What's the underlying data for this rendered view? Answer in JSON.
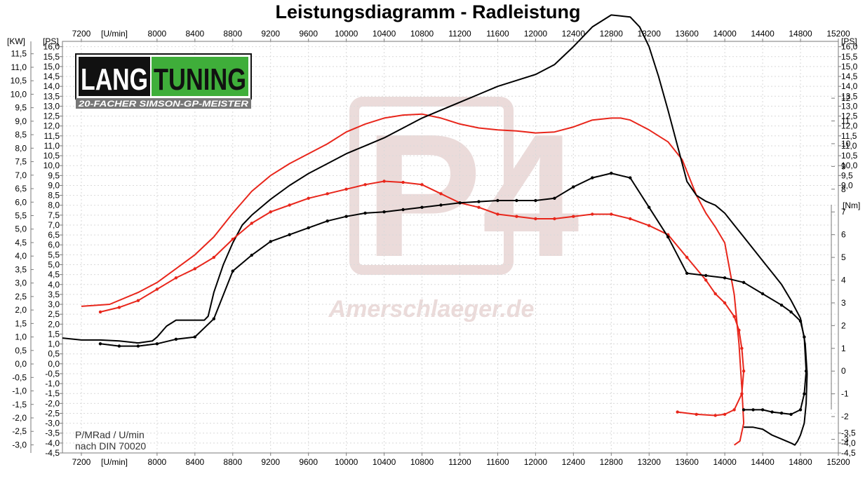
{
  "chart_data": {
    "type": "line",
    "title": "Leistungsdiagramm - Radleistung",
    "xlabel": "[U/min]",
    "ylabel_left_kw": "[KW]",
    "ylabel_left_ps": "[PS]",
    "ylabel_right_ps": "[PS]",
    "ylabel_right_nm": "[Nm]",
    "xlim": [
      7000,
      15200
    ],
    "x_ticks": [
      "7200",
      "8000",
      "8400",
      "8800",
      "9200",
      "9600",
      "10000",
      "10400",
      "10800",
      "11200",
      "11600",
      "12000",
      "12400",
      "12800",
      "13200",
      "13600",
      "14000",
      "14400",
      "14800",
      "15200"
    ],
    "kw_ylim": [
      -3.3,
      11.96
    ],
    "kw_ticks": [
      "11,5",
      "11,0",
      "10,5",
      "10,0",
      "9,5",
      "9,0",
      "8,5",
      "8,0",
      "7,5",
      "7,0",
      "6,5",
      "6,0",
      "5,5",
      "5,0",
      "4,5",
      "4,0",
      "3,5",
      "3,0",
      "2,5",
      "2,0",
      "1,5",
      "1,0",
      "0,5",
      "0,0",
      "-0,5",
      "-1,0",
      "-1,5",
      "-2,0",
      "-2,5",
      "-3,0"
    ],
    "ps_ylim": [
      -4.5,
      16.27
    ],
    "ps_ticks": [
      "16,0",
      "15,5",
      "15,0",
      "14,5",
      "14,0",
      "13,5",
      "13,0",
      "12,5",
      "12,0",
      "11,5",
      "11,0",
      "10,5",
      "10,0",
      "9,5",
      "9,0",
      "8,5",
      "8,0",
      "7,5",
      "7,0",
      "6,5",
      "6,0",
      "5,5",
      "5,0",
      "4,5",
      "4,0",
      "3,5",
      "3,0",
      "2,5",
      "2,0",
      "1,5",
      "1,0",
      "0,5",
      "0,0",
      "-0,5",
      "-1,0",
      "-1,5",
      "-2,0",
      "-2,5",
      "-3,0",
      "-3,5",
      "-4,0",
      "-4,5"
    ],
    "ps_right_ticks": [
      "16,0",
      "15,5",
      "15,0",
      "14,5",
      "14,0",
      "13,5",
      "13,0",
      "12,5",
      "12,0",
      "11,5",
      "11,0",
      "10,5",
      "10,0",
      "9,5",
      "9,0"
    ],
    "nm_ylim": [
      -3.6,
      14.5
    ],
    "nm_ticks": [
      "12",
      "11",
      "10",
      "9",
      "8",
      "7",
      "6",
      "5",
      "4",
      "3",
      "2",
      "1",
      "0",
      "-1",
      "-2",
      "-3"
    ],
    "ps_right_low_ticks": [
      "-3,5",
      "-4,0",
      "-4,5"
    ],
    "series": [
      {
        "axis": "PS",
        "color": "#e8261b",
        "style": "line",
        "x": [
          7200,
          7500,
          7800,
          8000,
          8200,
          8400,
          8600,
          8800,
          9000,
          9200,
          9400,
          9600,
          9800,
          10000,
          10200,
          10400,
          10600,
          10800,
          11000,
          11200,
          11400,
          11600,
          11800,
          12000,
          12200,
          12400,
          12600,
          12800,
          12900,
          13000,
          13200,
          13400,
          13550,
          13700,
          13800,
          13900,
          14000,
          14100,
          14150,
          14180,
          14200,
          14160,
          14100
        ],
        "y": [
          2.9,
          3.0,
          3.6,
          4.1,
          4.8,
          5.5,
          6.4,
          7.6,
          8.7,
          9.5,
          10.1,
          10.6,
          11.1,
          11.7,
          12.1,
          12.4,
          12.55,
          12.6,
          12.4,
          12.1,
          11.9,
          11.8,
          11.75,
          11.65,
          11.7,
          11.95,
          12.3,
          12.4,
          12.4,
          12.3,
          11.8,
          11.2,
          10.3,
          8.5,
          7.6,
          6.9,
          6.1,
          3.5,
          1.0,
          -1.2,
          -3.0,
          -3.9,
          -4.1
        ]
      },
      {
        "axis": "PS",
        "color": "#000000",
        "style": "line",
        "x": [
          7000,
          7200,
          7400,
          7600,
          7800,
          7950,
          8000,
          8100,
          8200,
          8300,
          8400,
          8500,
          8540,
          8600,
          8700,
          8800,
          8900,
          9000,
          9200,
          9400,
          9600,
          9800,
          10000,
          10200,
          10400,
          10600,
          10800,
          11000,
          11200,
          11400,
          11600,
          11800,
          12000,
          12200,
          12400,
          12600,
          12800,
          12900,
          13000,
          13100,
          13200,
          13300,
          13400,
          13500,
          13600,
          13700,
          13800,
          13900,
          14000,
          14100,
          14200,
          14300,
          14400,
          14500,
          14600,
          14700,
          14800,
          14850,
          14870,
          14860,
          14840,
          14800,
          14770,
          14740,
          14700,
          14600,
          14500,
          14400,
          14300,
          14200
        ],
        "y": [
          1.3,
          1.2,
          1.2,
          1.15,
          1.05,
          1.15,
          1.35,
          1.9,
          2.2,
          2.2,
          2.2,
          2.2,
          2.4,
          3.6,
          5.0,
          6.1,
          7.0,
          7.5,
          8.3,
          9.0,
          9.6,
          10.1,
          10.6,
          11.0,
          11.4,
          11.9,
          12.4,
          12.8,
          13.2,
          13.6,
          14.0,
          14.3,
          14.6,
          15.1,
          16.0,
          17.0,
          17.6,
          17.55,
          17.5,
          17.0,
          16.0,
          14.5,
          12.8,
          11.0,
          9.2,
          8.5,
          8.2,
          8.0,
          7.6,
          7.0,
          6.4,
          5.8,
          5.2,
          4.6,
          4.0,
          3.2,
          2.3,
          1.0,
          -0.5,
          -2.0,
          -3.0,
          -3.6,
          -3.9,
          -4.1,
          -4.0,
          -3.8,
          -3.6,
          -3.3,
          -3.2,
          -3.2
        ]
      },
      {
        "axis": "Nm",
        "color": "#e8261b",
        "style": "dotted-line",
        "x": [
          7400,
          7600,
          7800,
          8000,
          8200,
          8400,
          8600,
          8800,
          9000,
          9200,
          9400,
          9600,
          9800,
          10000,
          10200,
          10400,
          10600,
          10800,
          11000,
          11200,
          11400,
          11600,
          11800,
          12000,
          12200,
          12400,
          12600,
          12800,
          13000,
          13200,
          13400,
          13600,
          13800,
          13900,
          14000,
          14100,
          14150,
          14180,
          14200,
          14180,
          14100,
          14000,
          13900,
          13700,
          13500
        ],
        "y": [
          2.6,
          2.8,
          3.1,
          3.6,
          4.1,
          4.5,
          5.0,
          5.8,
          6.5,
          7.0,
          7.3,
          7.6,
          7.8,
          8.0,
          8.2,
          8.35,
          8.3,
          8.2,
          7.8,
          7.4,
          7.2,
          6.9,
          6.8,
          6.7,
          6.7,
          6.8,
          6.9,
          6.9,
          6.7,
          6.4,
          6.0,
          5.0,
          4.0,
          3.4,
          3.0,
          2.4,
          1.8,
          1.0,
          0.0,
          -1.0,
          -1.7,
          -1.9,
          -1.95,
          -1.9,
          -1.8
        ]
      },
      {
        "axis": "Nm",
        "color": "#000000",
        "style": "dotted-line",
        "x": [
          7400,
          7600,
          7800,
          8000,
          8200,
          8400,
          8600,
          8800,
          9000,
          9200,
          9400,
          9600,
          9800,
          10000,
          10200,
          10400,
          10600,
          10800,
          11000,
          11200,
          11400,
          11600,
          11800,
          12000,
          12200,
          12400,
          12600,
          12800,
          13000,
          13200,
          13400,
          13600,
          13800,
          14000,
          14200,
          14400,
          14600,
          14700,
          14800,
          14840,
          14860,
          14840,
          14800,
          14700,
          14600,
          14500,
          14400,
          14300,
          14200
        ],
        "y": [
          1.2,
          1.1,
          1.1,
          1.2,
          1.4,
          1.5,
          2.3,
          4.4,
          5.1,
          5.7,
          6.0,
          6.3,
          6.6,
          6.8,
          6.95,
          7.0,
          7.1,
          7.2,
          7.3,
          7.4,
          7.45,
          7.5,
          7.5,
          7.5,
          7.6,
          8.1,
          8.5,
          8.7,
          8.5,
          7.2,
          5.9,
          4.3,
          4.2,
          4.1,
          3.9,
          3.4,
          2.9,
          2.6,
          2.2,
          1.5,
          0.0,
          -1.0,
          -1.7,
          -1.9,
          -1.85,
          -1.8,
          -1.7,
          -1.7,
          -1.7
        ]
      }
    ],
    "annotations": [
      "P/MRad / U/min",
      "nach DIN 70020"
    ],
    "grid": true,
    "legend": "none"
  },
  "logo": {
    "text_lang": "LANG",
    "text_tuning": "TUNING",
    "subtitle": "20-FACHER SIMSON-GP-MEISTER",
    "color_green": "#3fae3a"
  },
  "watermark": {
    "text": "Amerschlaeger.de",
    "color": "#c79b97"
  }
}
